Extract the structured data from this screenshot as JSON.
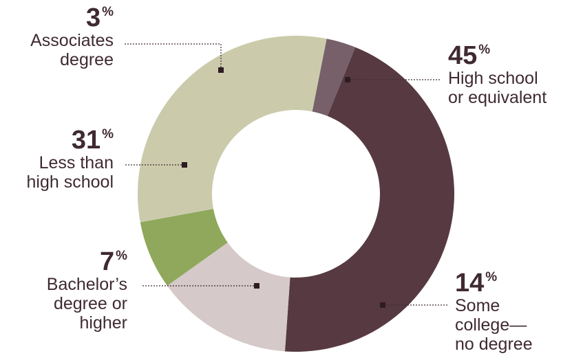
{
  "chart_data": {
    "type": "pie",
    "donut": true,
    "unit": "%",
    "title": "",
    "slices": [
      {
        "label": "High school or equivalent",
        "value": 45,
        "display_pct": "45",
        "display_name": "High school\nor equivalent",
        "color": "#573a41"
      },
      {
        "label": "Some college—no degree",
        "value": 14,
        "display_pct": "14",
        "display_name": "Some\ncollege—\nno degree",
        "color": "#d5c9c9"
      },
      {
        "label": "Bachelor’s degree or higher",
        "value": 7,
        "display_pct": "7",
        "display_name": "Bachelor’s\ndegree or\nhigher",
        "color": "#8fa85c"
      },
      {
        "label": "Less than high school",
        "value": 31,
        "display_pct": "31",
        "display_name": "Less than\nhigh school",
        "color": "#cbcbac"
      },
      {
        "label": "Associates degree",
        "value": 3,
        "display_pct": "3",
        "display_name": "Associates\ndegree",
        "color": "#77606a"
      }
    ],
    "legend": "callout labels with dotted leader lines"
  }
}
